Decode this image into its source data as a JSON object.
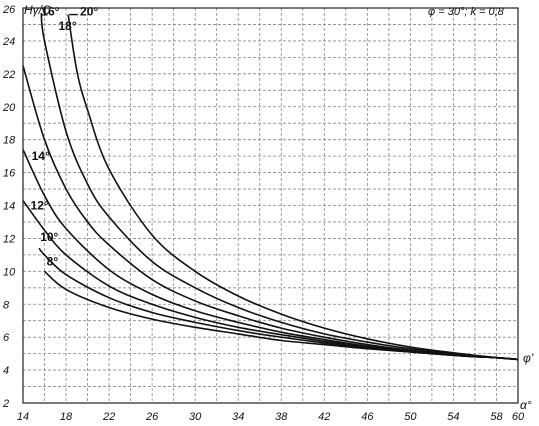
{
  "chart_data": {
    "type": "line",
    "title": "",
    "xlabel": "α°",
    "ylabel": "Hγ/C",
    "parameters": "φ = 30°; k = 0,8",
    "end_label": "φ'",
    "xlim": [
      14,
      60
    ],
    "ylim": [
      2,
      26
    ],
    "x_ticks": [
      "14",
      "18",
      "22",
      "26",
      "30",
      "34",
      "38",
      "42",
      "46",
      "50",
      "54",
      "58",
      "60"
    ],
    "y_ticks": [
      "2",
      "4",
      "6",
      "8",
      "10",
      "12",
      "14",
      "16",
      "18",
      "20",
      "22",
      "24",
      "26"
    ],
    "grid": true,
    "series": [
      {
        "name": "8°",
        "x": [
          16,
          18,
          22,
          26,
          30,
          34,
          38,
          42,
          46,
          50,
          54,
          58,
          60
        ],
        "y": [
          10.0,
          8.9,
          7.8,
          7.1,
          6.6,
          6.2,
          5.8,
          5.55,
          5.3,
          5.1,
          4.9,
          4.75,
          4.65
        ]
      },
      {
        "name": "10°",
        "x": [
          15.5,
          16,
          18,
          22,
          26,
          30,
          34,
          38,
          42,
          46,
          50,
          54,
          58,
          60
        ],
        "y": [
          11.4,
          11.0,
          9.8,
          8.4,
          7.5,
          6.9,
          6.4,
          6.0,
          5.65,
          5.35,
          5.1,
          4.9,
          4.75,
          4.65
        ]
      },
      {
        "name": "12°",
        "x": [
          14,
          16,
          18,
          22,
          26,
          30,
          34,
          38,
          42,
          46,
          50,
          54,
          58,
          60
        ],
        "y": [
          14.3,
          12.5,
          11.0,
          9.1,
          8.0,
          7.2,
          6.6,
          6.15,
          5.75,
          5.4,
          5.15,
          4.9,
          4.75,
          4.65
        ]
      },
      {
        "name": "14°",
        "x": [
          14,
          16,
          18,
          22,
          26,
          30,
          34,
          38,
          42,
          46,
          50,
          54,
          58,
          60
        ],
        "y": [
          17.4,
          14.6,
          12.6,
          10.1,
          8.6,
          7.6,
          6.9,
          6.3,
          5.85,
          5.45,
          5.15,
          4.9,
          4.75,
          4.65
        ]
      },
      {
        "name": "16°",
        "x": [
          14,
          16,
          18,
          20,
          22,
          26,
          30,
          34,
          38,
          42,
          46,
          50,
          54,
          58,
          60
        ],
        "y": [
          22.5,
          18.0,
          15.0,
          13.0,
          11.6,
          9.5,
          8.2,
          7.3,
          6.55,
          6.0,
          5.55,
          5.2,
          4.95,
          4.75,
          4.65
        ]
      },
      {
        "name": "18°",
        "x": [
          15.7,
          16,
          18,
          20,
          22,
          26,
          30,
          34,
          38,
          42,
          46,
          50,
          54,
          58,
          60
        ],
        "y": [
          25.7,
          24.0,
          18.5,
          15.3,
          13.3,
          10.6,
          9.0,
          7.8,
          6.9,
          6.2,
          5.7,
          5.3,
          5.0,
          4.75,
          4.65
        ]
      },
      {
        "name": "20°",
        "x": [
          18.2,
          19,
          20,
          22,
          26,
          30,
          34,
          38,
          42,
          46,
          50,
          54,
          58,
          60
        ],
        "y": [
          25.6,
          22.2,
          19.8,
          16.2,
          12.2,
          10.0,
          8.5,
          7.4,
          6.55,
          5.9,
          5.4,
          5.05,
          4.75,
          4.65
        ]
      }
    ],
    "curve_labels": [
      {
        "text": "8°",
        "x": 16.2,
        "y": 10.6
      },
      {
        "text": "10°",
        "x": 15.6,
        "y": 12.1
      },
      {
        "text": "12°",
        "x": 14.7,
        "y": 14.0
      },
      {
        "text": "14°",
        "x": 14.8,
        "y": 17.0
      },
      {
        "text": "16°",
        "x": 15.7,
        "y": 25.8
      },
      {
        "text": "18°",
        "x": 17.3,
        "y": 24.9
      },
      {
        "text": "20°",
        "x": 19.3,
        "y": 25.8
      }
    ]
  }
}
